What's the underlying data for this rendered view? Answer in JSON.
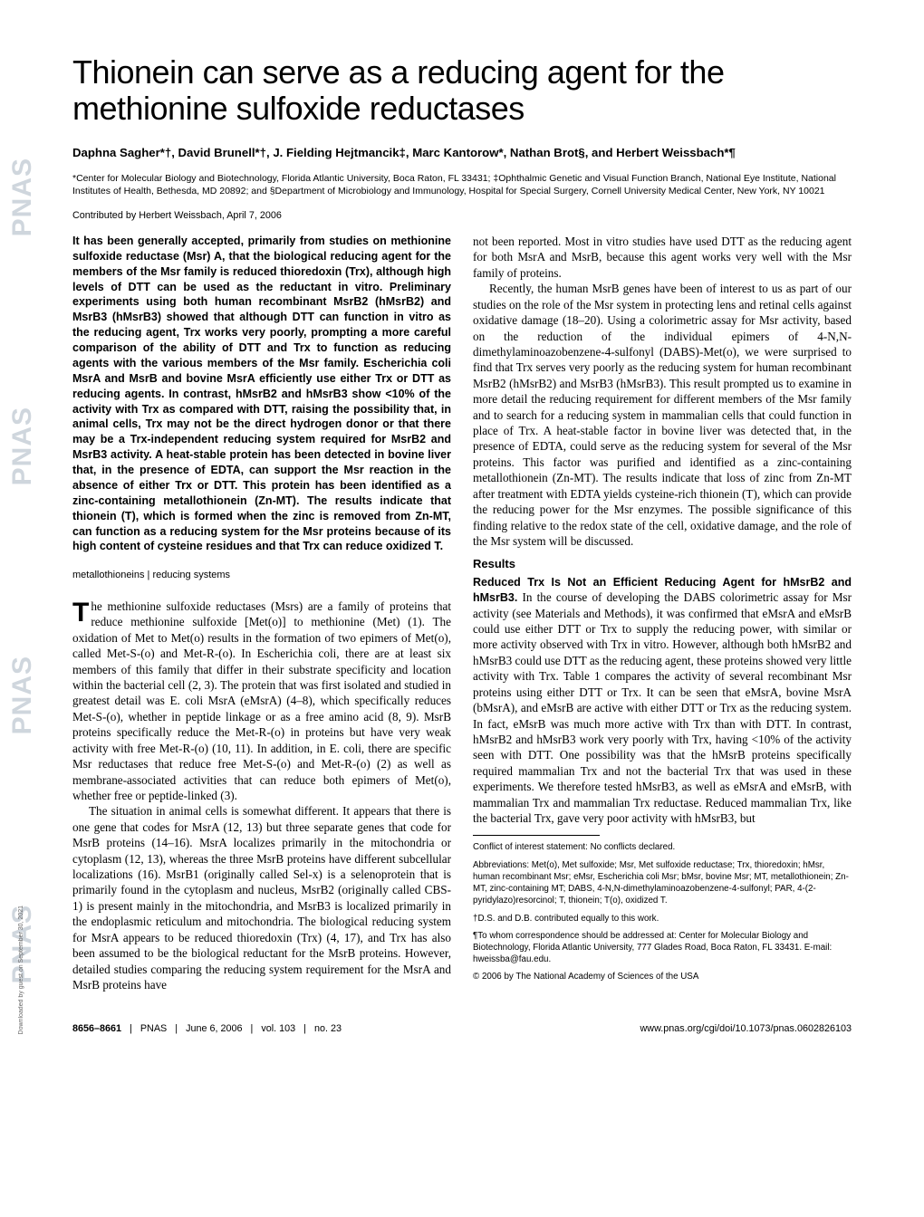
{
  "sidebar_text": "PNAS",
  "title": "Thionein can serve as a reducing agent for the methionine sulfoxide reductases",
  "authors_html": "Daphna Sagher*†, David Brunell*†, J. Fielding Hejtmancik‡, Marc Kantorow*, Nathan Brot§, and Herbert Weissbach*¶",
  "affiliations": "*Center for Molecular Biology and Biotechnology, Florida Atlantic University, Boca Raton, FL 33431; ‡Ophthalmic Genetic and Visual Function Branch, National Eye Institute, National Institutes of Health, Bethesda, MD 20892; and §Department of Microbiology and Immunology, Hospital for Special Surgery, Cornell University Medical Center, New York, NY 10021",
  "contributed": "Contributed by Herbert Weissbach, April 7, 2006",
  "abstract": "It has been generally accepted, primarily from studies on methionine sulfoxide reductase (Msr) A, that the biological reducing agent for the members of the Msr family is reduced thioredoxin (Trx), although high levels of DTT can be used as the reductant in vitro. Preliminary experiments using both human recombinant MsrB2 (hMsrB2) and MsrB3 (hMsrB3) showed that although DTT can function in vitro as the reducing agent, Trx works very poorly, prompting a more careful comparison of the ability of DTT and Trx to function as reducing agents with the various members of the Msr family. Escherichia coli MsrA and MsrB and bovine MsrA efficiently use either Trx or DTT as reducing agents. In contrast, hMsrB2 and hMsrB3 show <10% of the activity with Trx as compared with DTT, raising the possibility that, in animal cells, Trx may not be the direct hydrogen donor or that there may be a Trx-independent reducing system required for MsrB2 and MsrB3 activity. A heat-stable protein has been detected in bovine liver that, in the presence of EDTA, can support the Msr reaction in the absence of either Trx or DTT. This protein has been identified as a zinc-containing metallothionein (Zn-MT). The results indicate that thionein (T), which is formed when the zinc is removed from Zn-MT, can function as a reducing system for the Msr proteins because of its high content of cysteine residues and that Trx can reduce oxidized T.",
  "keywords": "metallothioneins | reducing systems",
  "left_para1_dropcap": "T",
  "left_para1": "he methionine sulfoxide reductases (Msrs) are a family of proteins that reduce methionine sulfoxide [Met(o)] to methionine (Met) (1). The oxidation of Met to Met(o) results in the formation of two epimers of Met(o), called Met-S-(o) and Met-R-(o). In Escherichia coli, there are at least six members of this family that differ in their substrate specificity and location within the bacterial cell (2, 3). The protein that was first isolated and studied in greatest detail was E. coli MsrA (eMsrA) (4–8), which specifically reduces Met-S-(o), whether in peptide linkage or as a free amino acid (8, 9). MsrB proteins specifically reduce the Met-R-(o) in proteins but have very weak activity with free Met-R-(o) (10, 11). In addition, in E. coli, there are specific Msr reductases that reduce free Met-S-(o) and Met-R-(o) (2) as well as membrane-associated activities that can reduce both epimers of Met(o), whether free or peptide-linked (3).",
  "left_para2": "The situation in animal cells is somewhat different. It appears that there is one gene that codes for MsrA (12, 13) but three separate genes that code for MsrB proteins (14–16). MsrA localizes primarily in the mitochondria or cytoplasm (12, 13), whereas the three MsrB proteins have different subcellular localizations (16). MsrB1 (originally called Sel-x) is a selenoprotein that is primarily found in the cytoplasm and nucleus, MsrB2 (originally called CBS-1) is present mainly in the mitochondria, and MsrB3 is localized primarily in the endoplasmic reticulum and mitochondria. The biological reducing system for MsrA appears to be reduced thioredoxin (Trx) (4, 17), and Trx has also been assumed to be the biological reductant for the MsrB proteins. However, detailed studies comparing the reducing system requirement for the MsrA and MsrB proteins have",
  "right_para1": "not been reported. Most in vitro studies have used DTT as the reducing agent for both MsrA and MsrB, because this agent works very well with the Msr family of proteins.",
  "right_para2": "Recently, the human MsrB genes have been of interest to us as part of our studies on the role of the Msr system in protecting lens and retinal cells against oxidative damage (18–20). Using a colorimetric assay for Msr activity, based on the reduction of the individual epimers of 4-N,N-dimethylaminoazobenzene-4-sulfonyl (DABS)-Met(o), we were surprised to find that Trx serves very poorly as the reducing system for human recombinant MsrB2 (hMsrB2) and MsrB3 (hMsrB3). This result prompted us to examine in more detail the reducing requirement for different members of the Msr family and to search for a reducing system in mammalian cells that could function in place of Trx. A heat-stable factor in bovine liver was detected that, in the presence of EDTA, could serve as the reducing system for several of the Msr proteins. This factor was purified and identified as a zinc-containing metallothionein (Zn-MT). The results indicate that loss of zinc from Zn-MT after treatment with EDTA yields cysteine-rich thionein (T), which can provide the reducing power for the Msr enzymes. The possible significance of this finding relative to the redox state of the cell, oxidative damage, and the role of the Msr system will be discussed.",
  "results_head": "Results",
  "results_sub_lead": "Reduced Trx Is Not an Efficient Reducing Agent for hMsrB2 and hMsrB3.",
  "results_body": " In the course of developing the DABS colorimetric assay for Msr activity (see Materials and Methods), it was confirmed that eMsrA and eMsrB could use either DTT or Trx to supply the reducing power, with similar or more activity observed with Trx in vitro. However, although both hMsrB2 and hMsrB3 could use DTT as the reducing agent, these proteins showed very little activity with Trx. Table 1 compares the activity of several recombinant Msr proteins using either DTT or Trx. It can be seen that eMsrA, bovine MsrA (bMsrA), and eMsrB are active with either DTT or Trx as the reducing system. In fact, eMsrB was much more active with Trx than with DTT. In contrast, hMsrB2 and hMsrB3 work very poorly with Trx, having <10% of the activity seen with DTT. One possibility was that the hMsrB proteins specifically required mammalian Trx and not the bacterial Trx that was used in these experiments. We therefore tested hMsrB3, as well as eMsrA and eMsrB, with mammalian Trx and mammalian Trx reductase. Reduced mammalian Trx, like the bacterial Trx, gave very poor activity with hMsrB3, but",
  "conflict": "Conflict of interest statement: No conflicts declared.",
  "abbrev": "Abbreviations: Met(o), Met sulfoxide; Msr, Met sulfoxide reductase; Trx, thioredoxin; hMsr, human recombinant Msr; eMsr, Escherichia coli Msr; bMsr, bovine Msr; MT, metallothionein; Zn-MT, zinc-containing MT; DABS, 4-N,N-dimethylaminoazobenzene-4-sulfonyl; PAR, 4-(2-pyridylazo)resorcinol; T, thionein; T(o), oxidized T.",
  "equal": "†D.S. and D.B. contributed equally to this work.",
  "corr": "¶To whom correspondence should be addressed at: Center for Molecular Biology and Biotechnology, Florida Atlantic University, 777 Glades Road, Boca Raton, FL 33431. E-mail: hweissba@fau.edu.",
  "copyright": "© 2006 by The National Academy of Sciences of the USA",
  "footer_pages": "8656–8661",
  "footer_pnas": "PNAS",
  "footer_date": "June 6, 2006",
  "footer_vol": "vol. 103",
  "footer_no": "no. 23",
  "footer_url": "www.pnas.org/cgi/doi/10.1073/pnas.0602826103",
  "download_text": "Downloaded by guest on September 30, 2021"
}
